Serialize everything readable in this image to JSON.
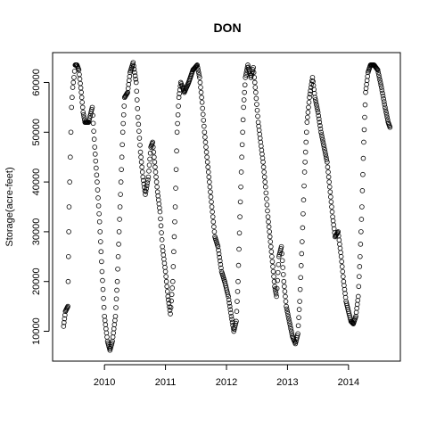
{
  "chart_data": {
    "type": "scatter",
    "title": "DON",
    "xlabel": "",
    "ylabel": "Storage(acre-feet)",
    "xlim": [
      2009.15,
      2014.85
    ],
    "ylim": [
      4000,
      66000
    ],
    "x_ticks": [
      2010,
      2011,
      2012,
      2013,
      2014
    ],
    "x_tick_labels": [
      "2010",
      "2011",
      "2012",
      "2013",
      "2014"
    ],
    "y_ticks": [
      10000,
      20000,
      30000,
      40000,
      50000,
      60000
    ],
    "y_tick_labels": [
      "10000",
      "20000",
      "30000",
      "40000",
      "50000",
      "60000"
    ],
    "grid": false,
    "legend": "none",
    "marker": "open-circle",
    "color": "#000000",
    "series": [
      {
        "points": [
          [
            2009.33,
            11000
          ],
          [
            2009.36,
            14000
          ],
          [
            2009.4,
            15000
          ],
          [
            2009.41,
            25000
          ],
          [
            2009.42,
            35000
          ],
          [
            2009.44,
            45000
          ],
          [
            2009.46,
            55000
          ],
          [
            2009.48,
            59000
          ],
          [
            2009.5,
            61000
          ],
          [
            2009.52,
            63500
          ],
          [
            2009.55,
            63500
          ],
          [
            2009.58,
            62500
          ],
          [
            2009.62,
            58000
          ],
          [
            2009.65,
            54000
          ],
          [
            2009.68,
            52000
          ],
          [
            2009.74,
            52000
          ],
          [
            2009.8,
            55000
          ],
          [
            2009.84,
            47000
          ],
          [
            2009.88,
            40000
          ],
          [
            2009.92,
            32000
          ],
          [
            2009.96,
            22000
          ],
          [
            2010.0,
            13000
          ],
          [
            2010.05,
            8000
          ],
          [
            2010.09,
            6200
          ],
          [
            2010.13,
            8000
          ],
          [
            2010.18,
            13000
          ],
          [
            2010.21,
            20000
          ],
          [
            2010.24,
            30000
          ],
          [
            2010.27,
            40000
          ],
          [
            2010.3,
            50000
          ],
          [
            2010.33,
            57000
          ],
          [
            2010.38,
            58000
          ],
          [
            2010.42,
            62000
          ],
          [
            2010.47,
            64000
          ],
          [
            2010.52,
            60000
          ],
          [
            2010.55,
            53000
          ],
          [
            2010.59,
            46000
          ],
          [
            2010.63,
            41000
          ],
          [
            2010.67,
            37500
          ],
          [
            2010.72,
            41000
          ],
          [
            2010.76,
            47000
          ],
          [
            2010.79,
            48000
          ],
          [
            2010.83,
            43000
          ],
          [
            2010.87,
            38000
          ],
          [
            2010.91,
            34000
          ],
          [
            2010.95,
            27000
          ],
          [
            2011.0,
            22000
          ],
          [
            2011.04,
            17000
          ],
          [
            2011.08,
            13500
          ],
          [
            2011.12,
            20000
          ],
          [
            2011.16,
            35000
          ],
          [
            2011.19,
            50000
          ],
          [
            2011.22,
            57000
          ],
          [
            2011.25,
            60000
          ],
          [
            2011.31,
            58000
          ],
          [
            2011.38,
            60000
          ],
          [
            2011.45,
            62500
          ],
          [
            2011.52,
            63500
          ],
          [
            2011.56,
            61000
          ],
          [
            2011.6,
            56000
          ],
          [
            2011.64,
            50000
          ],
          [
            2011.68,
            45000
          ],
          [
            2011.72,
            40000
          ],
          [
            2011.76,
            35000
          ],
          [
            2011.81,
            29000
          ],
          [
            2011.86,
            27000
          ],
          [
            2011.92,
            22000
          ],
          [
            2011.97,
            20000
          ],
          [
            2012.03,
            17000
          ],
          [
            2012.08,
            13000
          ],
          [
            2012.12,
            10000
          ],
          [
            2012.16,
            12000
          ],
          [
            2012.19,
            20000
          ],
          [
            2012.22,
            33000
          ],
          [
            2012.25,
            45000
          ],
          [
            2012.28,
            55000
          ],
          [
            2012.31,
            61000
          ],
          [
            2012.35,
            63500
          ],
          [
            2012.4,
            61000
          ],
          [
            2012.44,
            63000
          ],
          [
            2012.48,
            58000
          ],
          [
            2012.52,
            52000
          ],
          [
            2012.56,
            48000
          ],
          [
            2012.6,
            44000
          ],
          [
            2012.64,
            39000
          ],
          [
            2012.68,
            33000
          ],
          [
            2012.72,
            28000
          ],
          [
            2012.76,
            23000
          ],
          [
            2012.79,
            19000
          ],
          [
            2012.82,
            17000
          ],
          [
            2012.86,
            25000
          ],
          [
            2012.9,
            27000
          ],
          [
            2012.94,
            20000
          ],
          [
            2012.98,
            15000
          ],
          [
            2013.03,
            12000
          ],
          [
            2013.08,
            9000
          ],
          [
            2013.13,
            7500
          ],
          [
            2013.17,
            9500
          ],
          [
            2013.2,
            16000
          ],
          [
            2013.24,
            28000
          ],
          [
            2013.28,
            42000
          ],
          [
            2013.32,
            52000
          ],
          [
            2013.36,
            57000
          ],
          [
            2013.41,
            61000
          ],
          [
            2013.45,
            57000
          ],
          [
            2013.5,
            54000
          ],
          [
            2013.55,
            50000
          ],
          [
            2013.6,
            47000
          ],
          [
            2013.65,
            44000
          ],
          [
            2013.7,
            38000
          ],
          [
            2013.74,
            33000
          ],
          [
            2013.78,
            29000
          ],
          [
            2013.83,
            30000
          ],
          [
            2013.88,
            25000
          ],
          [
            2013.92,
            20000
          ],
          [
            2013.96,
            16000
          ],
          [
            2014.0,
            14000
          ],
          [
            2014.04,
            12000
          ],
          [
            2014.08,
            11500
          ],
          [
            2014.12,
            13000
          ],
          [
            2014.16,
            17000
          ],
          [
            2014.19,
            25000
          ],
          [
            2014.22,
            35000
          ],
          [
            2014.25,
            48000
          ],
          [
            2014.28,
            58000
          ],
          [
            2014.32,
            62000
          ],
          [
            2014.36,
            63500
          ],
          [
            2014.42,
            63500
          ],
          [
            2014.48,
            62500
          ],
          [
            2014.54,
            59000
          ],
          [
            2014.6,
            55000
          ],
          [
            2014.65,
            52000
          ],
          [
            2014.68,
            51000
          ]
        ]
      }
    ]
  }
}
